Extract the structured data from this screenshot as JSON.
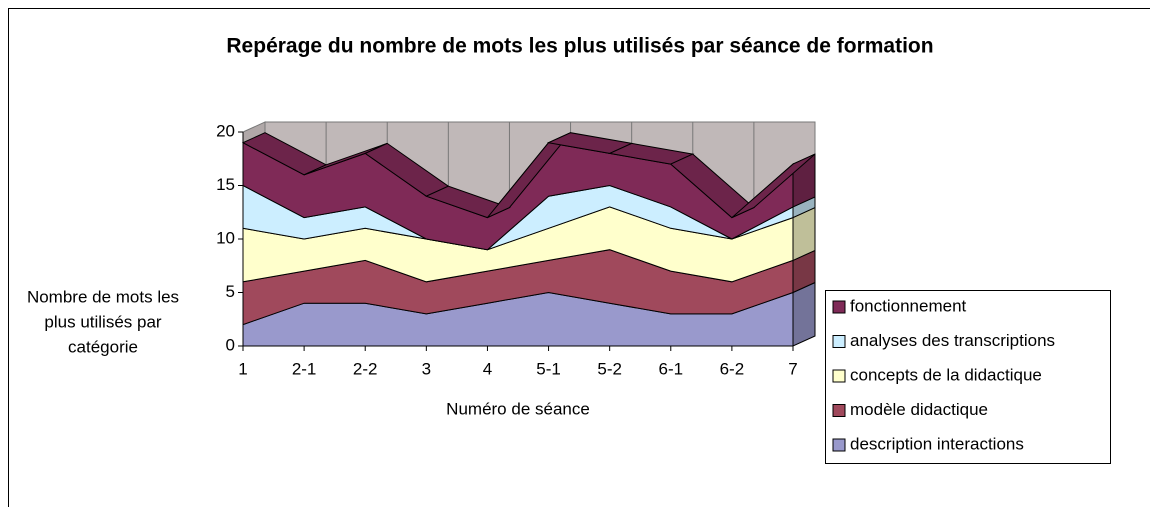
{
  "chart_data": {
    "type": "area3d",
    "title": "Repérage du nombre de mots les plus utilisés par séance de formation",
    "y_label": [
      "Nombre de mots les",
      "plus utilisés par",
      "catégorie"
    ],
    "x_label": "Numéro de séance",
    "categories": [
      "1",
      "2-1",
      "2-2",
      "3",
      "4",
      "5-1",
      "5-2",
      "6-1",
      "6-2",
      "7"
    ],
    "stacked": true,
    "ylim": [
      0,
      20
    ],
    "yticks": [
      0,
      5,
      10,
      15,
      20
    ],
    "series": [
      {
        "name": "description interactions",
        "color": "#9999cc",
        "values": [
          2,
          4,
          4,
          3,
          4,
          5,
          4,
          3,
          3,
          5
        ]
      },
      {
        "name": "modèle didactique",
        "color": "#a0495c",
        "values": [
          4,
          3,
          4,
          3,
          3,
          3,
          5,
          4,
          3,
          3
        ]
      },
      {
        "name": "concepts de la didactique",
        "color": "#ffffcc",
        "values": [
          5,
          3,
          3,
          4,
          2,
          3,
          4,
          4,
          4,
          4
        ]
      },
      {
        "name": "analyses des transcriptions",
        "color": "#cceeff",
        "values": [
          4,
          2,
          2,
          0,
          0,
          3,
          2,
          2,
          0,
          1
        ]
      },
      {
        "name": "fonctionnement",
        "color": "#7f2a57",
        "values": [
          4,
          4,
          5,
          4,
          3,
          5,
          3,
          4,
          2,
          4
        ]
      }
    ]
  }
}
